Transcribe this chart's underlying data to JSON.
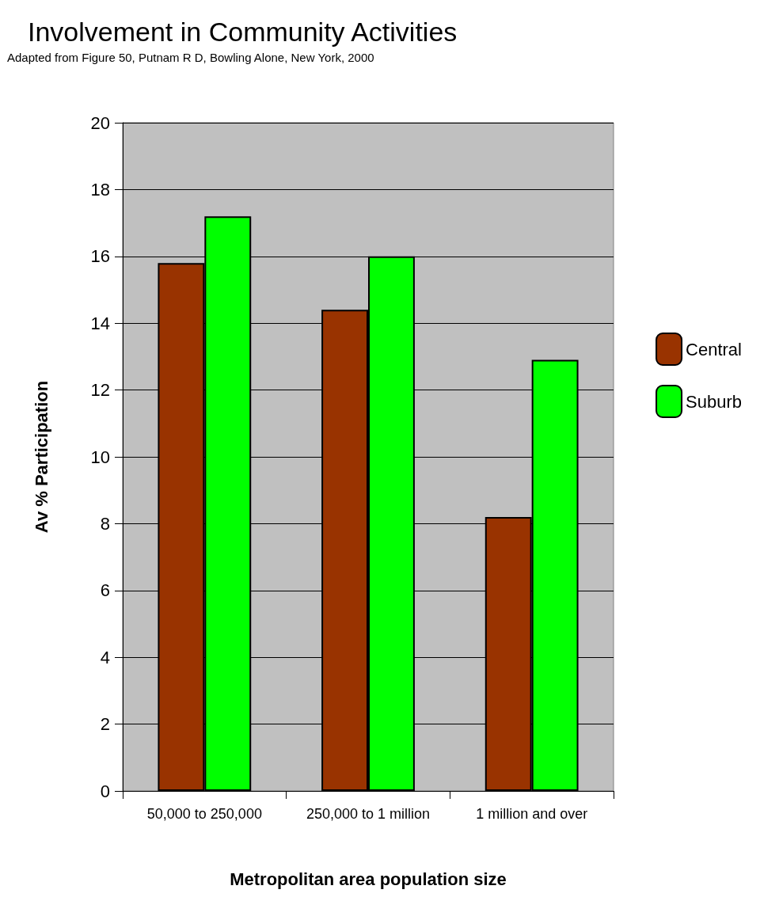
{
  "chart_data": {
    "type": "bar",
    "title": "Involvement in Community Activities",
    "annotations": [
      "Adapted from Figure 50, Putnam R D, Bowling Alone, New York, 2000"
    ],
    "xlabel": "Metropolitan area population size",
    "ylabel": "Av % Participation",
    "categories": [
      "50,000 to 250,000",
      "250,000 to 1 million",
      "1 million and over"
    ],
    "series": [
      {
        "name": "Central",
        "color": "#993300",
        "values": [
          15.8,
          14.4,
          8.2
        ]
      },
      {
        "name": "Suburb",
        "color": "#00ff00",
        "values": [
          17.2,
          16.0,
          12.9
        ]
      }
    ],
    "ylim": [
      0,
      20
    ],
    "yticks": [
      0,
      2,
      4,
      6,
      8,
      10,
      12,
      14,
      16,
      18,
      20
    ],
    "grid": "y",
    "legend": "right"
  }
}
